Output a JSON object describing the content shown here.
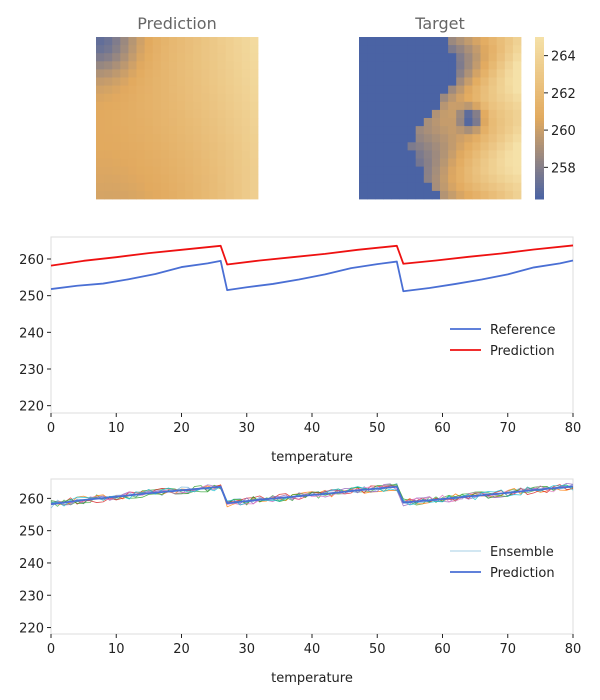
{
  "colors": {
    "colormap_low": "#4a63a4",
    "colormap_mid": "#e2aa5f",
    "colormap_high": "#f5e1a8",
    "reference": "#4a6fd4",
    "prediction_red": "#ee1111",
    "prediction_blue": "#4a6fd4",
    "ensemble": [
      "#7ab8d9",
      "#4caf50",
      "#ff7f0e",
      "#d62728",
      "#9467bd",
      "#2ca02c",
      "#e377c2",
      "#17becf"
    ],
    "axis_text": "#222222",
    "title_text": "#666666",
    "spine": "#dddddd"
  },
  "chart_data": [
    {
      "type": "heatmap",
      "title": "Prediction",
      "grid_size": 20,
      "pattern": "smooth-gradient",
      "value_range": [
        256.3,
        265
      ]
    },
    {
      "type": "heatmap",
      "title": "Target",
      "grid_size": 20,
      "pattern": "mostly-low-with-warm-right-edge",
      "value_range": [
        256.3,
        265
      ]
    },
    {
      "type": "colorbar",
      "ticks": [
        "258",
        "260",
        "262",
        "264"
      ],
      "tick_values": [
        258,
        260,
        262,
        264
      ],
      "range": [
        256.3,
        265
      ]
    },
    {
      "type": "line",
      "xlabel": "",
      "ylabel": "",
      "xlim": [
        0,
        80
      ],
      "ylim": [
        218,
        266
      ],
      "xticks": [
        "0",
        "10",
        "20",
        "30",
        "40",
        "50",
        "60",
        "70",
        "80"
      ],
      "yticks": [
        "220",
        "230",
        "240",
        "250",
        "260"
      ],
      "legend_position": "center-right",
      "series": [
        {
          "name": "Reference",
          "segments": [
            [
              [
                0,
                251.8
              ],
              [
                4,
                252.7
              ],
              [
                8,
                253.3
              ],
              [
                12,
                254.5
              ],
              [
                16,
                255.9
              ],
              [
                20,
                257.8
              ],
              [
                24,
                258.8
              ],
              [
                26,
                259.5
              ],
              [
                27,
                251.5
              ],
              [
                30,
                252.3
              ],
              [
                34,
                253.2
              ],
              [
                38,
                254.4
              ],
              [
                42,
                255.8
              ],
              [
                46,
                257.5
              ],
              [
                50,
                258.6
              ],
              [
                53,
                259.3
              ],
              [
                54,
                251.2
              ],
              [
                58,
                252.1
              ],
              [
                62,
                253.2
              ],
              [
                66,
                254.4
              ],
              [
                70,
                255.8
              ],
              [
                74,
                257.7
              ],
              [
                78,
                258.8
              ],
              [
                80,
                259.6
              ]
            ]
          ]
        },
        {
          "name": "Prediction",
          "segments": [
            [
              [
                0,
                258.2
              ],
              [
                5,
                259.5
              ],
              [
                10,
                260.5
              ],
              [
                15,
                261.6
              ],
              [
                20,
                262.5
              ],
              [
                26,
                263.6
              ],
              [
                27,
                258.5
              ],
              [
                32,
                259.6
              ],
              [
                37,
                260.5
              ],
              [
                42,
                261.4
              ],
              [
                47,
                262.5
              ],
              [
                53,
                263.6
              ],
              [
                54,
                258.7
              ],
              [
                59,
                259.6
              ],
              [
                64,
                260.6
              ],
              [
                69,
                261.5
              ],
              [
                74,
                262.6
              ],
              [
                80,
                263.7
              ]
            ]
          ]
        }
      ]
    },
    {
      "type": "line",
      "xlabel": "temperature",
      "ylabel": "",
      "xlim": [
        0,
        80
      ],
      "ylim": [
        218,
        266
      ],
      "xticks": [
        "0",
        "10",
        "20",
        "30",
        "40",
        "50",
        "60",
        "70",
        "80"
      ],
      "yticks": [
        "220",
        "230",
        "240",
        "250",
        "260"
      ],
      "legend_position": "center-right",
      "ensemble_members": 8,
      "ensemble_spread": 1.2,
      "series": [
        {
          "name": "Ensemble",
          "segments": []
        },
        {
          "name": "Prediction",
          "segments": [
            [
              [
                0,
                258.2
              ],
              [
                5,
                259.5
              ],
              [
                10,
                260.5
              ],
              [
                15,
                261.6
              ],
              [
                20,
                262.5
              ],
              [
                26,
                263.6
              ],
              [
                27,
                258.5
              ],
              [
                32,
                259.6
              ],
              [
                37,
                260.5
              ],
              [
                42,
                261.4
              ],
              [
                47,
                262.5
              ],
              [
                53,
                263.6
              ],
              [
                54,
                258.7
              ],
              [
                59,
                259.6
              ],
              [
                64,
                260.6
              ],
              [
                69,
                261.5
              ],
              [
                74,
                262.6
              ],
              [
                80,
                263.7
              ]
            ]
          ]
        }
      ]
    }
  ],
  "top_line_xlabel": "temperature"
}
